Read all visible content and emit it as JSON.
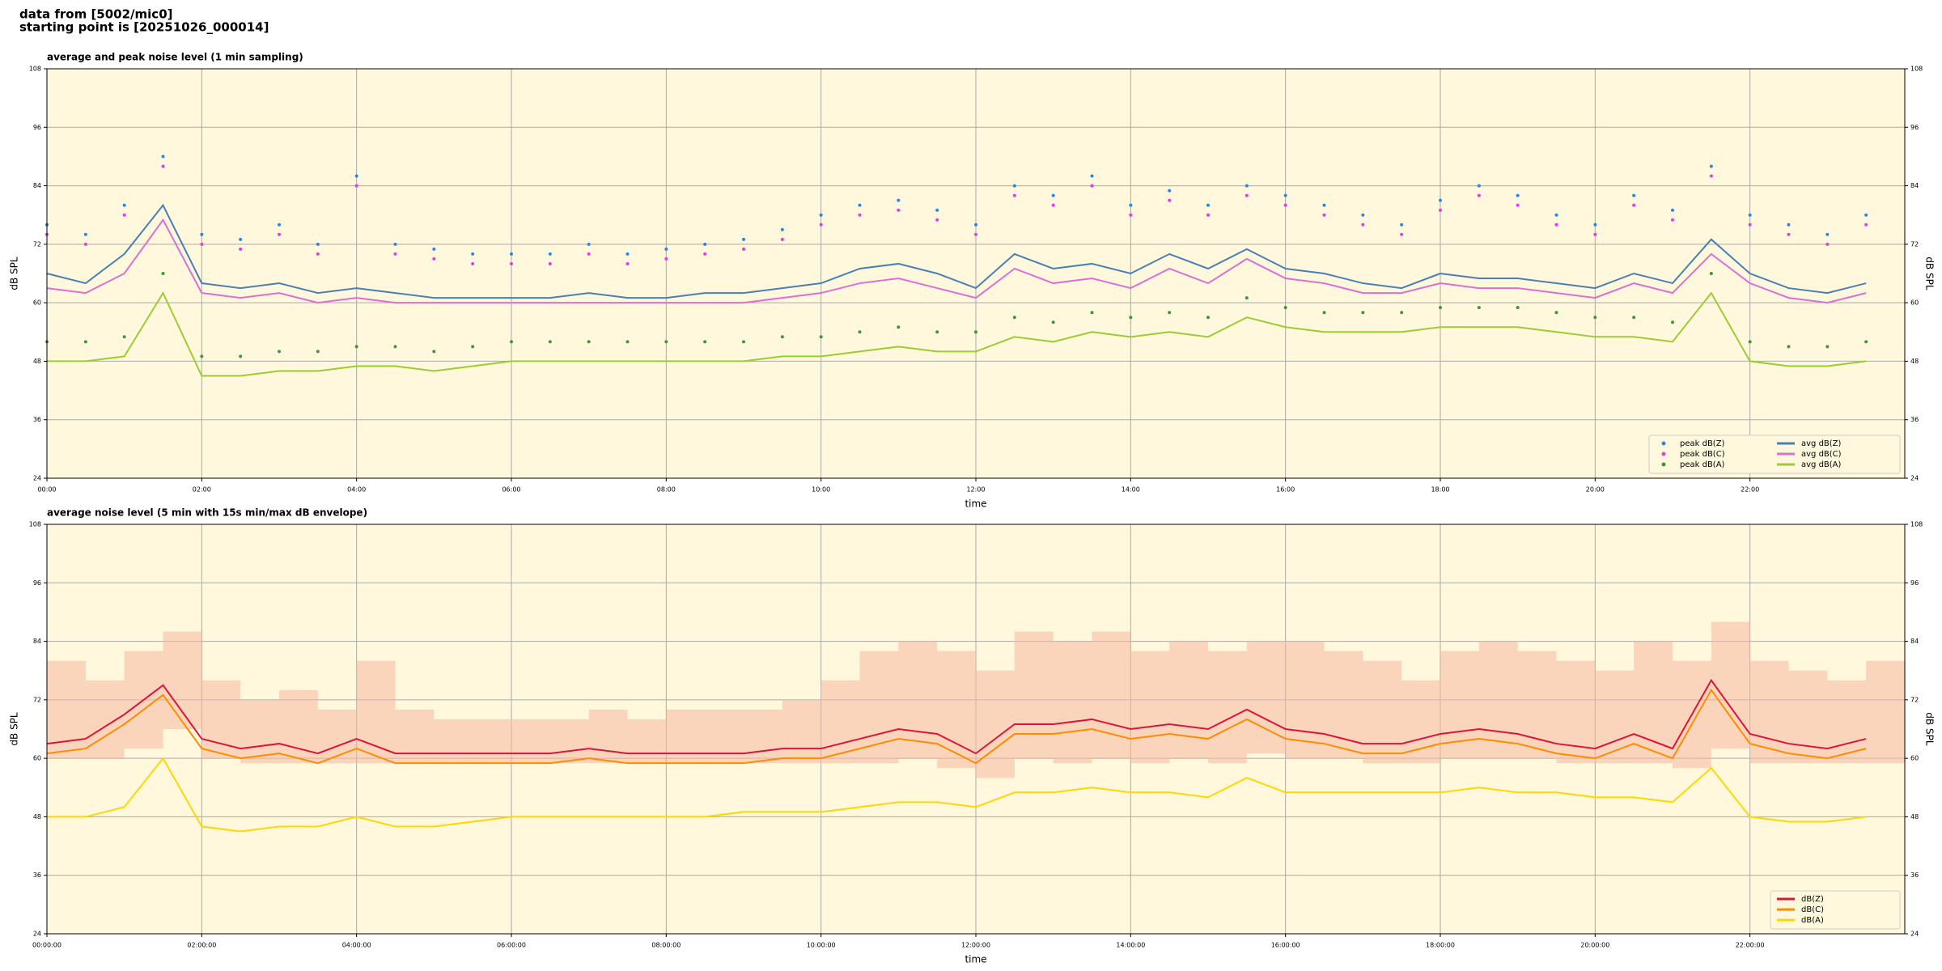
{
  "header": {
    "lines": [
      "data from [5002/mic0]",
      "starting point is [20251026_000014]"
    ]
  },
  "chart_data": [
    {
      "type": "line",
      "title": "average and peak noise level (1 min sampling)",
      "x_label": "time",
      "y_label": "dB SPL",
      "background": "#fff8dc",
      "grid": true,
      "legend": "lower right",
      "legend_columns": 2,
      "xlim": [
        0,
        24
      ],
      "ylim": [
        24,
        108
      ],
      "yticks": [
        24,
        36,
        48,
        60,
        72,
        84,
        96,
        108
      ],
      "xticks": [
        {
          "value": 0,
          "label": "00:00"
        },
        {
          "value": 2,
          "label": "02:00"
        },
        {
          "value": 4,
          "label": "04:00"
        },
        {
          "value": 6,
          "label": "06:00"
        },
        {
          "value": 8,
          "label": "08:00"
        },
        {
          "value": 10,
          "label": "10:00"
        },
        {
          "value": 12,
          "label": "12:00"
        },
        {
          "value": 14,
          "label": "14:00"
        },
        {
          "value": 16,
          "label": "16:00"
        },
        {
          "value": 18,
          "label": "18:00"
        },
        {
          "value": 20,
          "label": "20:00"
        },
        {
          "value": 22,
          "label": "22:00"
        }
      ],
      "x": [
        0,
        0.5,
        1,
        1.5,
        2,
        2.5,
        3,
        3.5,
        4,
        4.5,
        5,
        5.5,
        6,
        6.5,
        7,
        7.5,
        8,
        8.5,
        9,
        9.5,
        10,
        10.5,
        11,
        11.5,
        12,
        12.5,
        13,
        13.5,
        14,
        14.5,
        15,
        15.5,
        16,
        16.5,
        17,
        17.5,
        18,
        18.5,
        19,
        19.5,
        20,
        20.5,
        21,
        21.5,
        22,
        22.5,
        23,
        23.5
      ],
      "series": [
        {
          "name": "peak dB(Z)",
          "type": "scatter",
          "color": "#2e86de",
          "values": [
            76,
            74,
            80,
            90,
            74,
            73,
            76,
            72,
            86,
            72,
            71,
            70,
            70,
            70,
            72,
            70,
            71,
            72,
            73,
            75,
            78,
            80,
            81,
            79,
            76,
            84,
            82,
            86,
            80,
            83,
            80,
            84,
            82,
            80,
            78,
            76,
            81,
            84,
            82,
            78,
            76,
            82,
            79,
            88,
            78,
            76,
            74,
            78
          ]
        },
        {
          "name": "peak dB(C)",
          "type": "scatter",
          "color": "#e040e0",
          "values": [
            74,
            72,
            78,
            88,
            72,
            71,
            74,
            70,
            84,
            70,
            69,
            68,
            68,
            68,
            70,
            68,
            69,
            70,
            71,
            73,
            76,
            78,
            79,
            77,
            74,
            82,
            80,
            84,
            78,
            81,
            78,
            82,
            80,
            78,
            76,
            74,
            79,
            82,
            80,
            76,
            74,
            80,
            77,
            86,
            76,
            74,
            72,
            76
          ]
        },
        {
          "name": "peak dB(A)",
          "type": "scatter",
          "color": "#3a9a3a",
          "values": [
            52,
            52,
            53,
            66,
            49,
            49,
            50,
            50,
            51,
            51,
            50,
            51,
            52,
            52,
            52,
            52,
            52,
            52,
            52,
            53,
            53,
            54,
            55,
            54,
            54,
            57,
            56,
            58,
            57,
            58,
            57,
            61,
            59,
            58,
            58,
            58,
            59,
            59,
            59,
            58,
            57,
            57,
            56,
            66,
            52,
            51,
            51,
            52
          ]
        },
        {
          "name": "avg dB(Z)",
          "type": "line",
          "color": "#4a7fb5",
          "values": [
            66,
            64,
            70,
            80,
            64,
            63,
            64,
            62,
            63,
            62,
            61,
            61,
            61,
            61,
            62,
            61,
            61,
            62,
            62,
            63,
            64,
            67,
            68,
            66,
            63,
            70,
            67,
            68,
            66,
            70,
            67,
            71,
            67,
            66,
            64,
            63,
            66,
            65,
            65,
            64,
            63,
            66,
            64,
            73,
            66,
            63,
            62,
            64
          ]
        },
        {
          "name": "avg dB(C)",
          "type": "line",
          "color": "#da70d6",
          "values": [
            63,
            62,
            66,
            77,
            62,
            61,
            62,
            60,
            61,
            60,
            60,
            60,
            60,
            60,
            60,
            60,
            60,
            60,
            60,
            61,
            62,
            64,
            65,
            63,
            61,
            67,
            64,
            65,
            63,
            67,
            64,
            69,
            65,
            64,
            62,
            62,
            64,
            63,
            63,
            62,
            61,
            64,
            62,
            70,
            64,
            61,
            60,
            62
          ]
        },
        {
          "name": "avg dB(A)",
          "type": "line",
          "color": "#9acd32",
          "values": [
            48,
            48,
            49,
            62,
            45,
            45,
            46,
            46,
            47,
            47,
            46,
            47,
            48,
            48,
            48,
            48,
            48,
            48,
            48,
            49,
            49,
            50,
            51,
            50,
            50,
            53,
            52,
            54,
            53,
            54,
            53,
            57,
            55,
            54,
            54,
            54,
            55,
            55,
            55,
            54,
            53,
            53,
            52,
            62,
            48,
            47,
            47,
            48
          ]
        }
      ]
    },
    {
      "type": "line",
      "title": "average noise level (5 min with 15s min/max dB envelope)",
      "x_label": "time",
      "y_label": "dB SPL",
      "background": "#fff8dc",
      "grid": true,
      "legend": "lower right",
      "legend_columns": 1,
      "xlim": [
        0,
        24
      ],
      "ylim": [
        24,
        108
      ],
      "yticks": [
        24,
        36,
        48,
        60,
        72,
        84,
        96,
        108
      ],
      "xticks": [
        {
          "value": 0,
          "label": "00:00:00"
        },
        {
          "value": 2,
          "label": "02:00:00"
        },
        {
          "value": 4,
          "label": "04:00:00"
        },
        {
          "value": 6,
          "label": "06:00:00"
        },
        {
          "value": 8,
          "label": "08:00:00"
        },
        {
          "value": 10,
          "label": "10:00:00"
        },
        {
          "value": 12,
          "label": "12:00:00"
        },
        {
          "value": 14,
          "label": "14:00:00"
        },
        {
          "value": 16,
          "label": "16:00:00"
        },
        {
          "value": 18,
          "label": "18:00:00"
        },
        {
          "value": 20,
          "label": "20:00:00"
        },
        {
          "value": 22,
          "label": "22:00:00"
        }
      ],
      "x": [
        0,
        0.5,
        1,
        1.5,
        2,
        2.5,
        3,
        3.5,
        4,
        4.5,
        5,
        5.5,
        6,
        6.5,
        7,
        7.5,
        8,
        8.5,
        9,
        9.5,
        10,
        10.5,
        11,
        11.5,
        12,
        12.5,
        13,
        13.5,
        14,
        14.5,
        15,
        15.5,
        16,
        16.5,
        17,
        17.5,
        18,
        18.5,
        19,
        19.5,
        20,
        20.5,
        21,
        21.5,
        22,
        22.5,
        23,
        23.5
      ],
      "envelope": {
        "color": "#f5b8a0",
        "lower": [
          60,
          60,
          62,
          66,
          60,
          59,
          59,
          59,
          59,
          59,
          59,
          59,
          59,
          59,
          59,
          59,
          59,
          59,
          59,
          59,
          59,
          59,
          60,
          58,
          56,
          60,
          59,
          60,
          59,
          60,
          59,
          61,
          60,
          60,
          59,
          59,
          60,
          60,
          60,
          59,
          59,
          59,
          58,
          62,
          59,
          59,
          59,
          59
        ],
        "upper": [
          80,
          76,
          82,
          86,
          76,
          72,
          74,
          70,
          80,
          70,
          68,
          68,
          68,
          68,
          70,
          68,
          70,
          70,
          70,
          72,
          76,
          82,
          84,
          82,
          78,
          86,
          84,
          86,
          82,
          84,
          82,
          84,
          84,
          82,
          80,
          76,
          82,
          84,
          82,
          80,
          78,
          84,
          80,
          88,
          80,
          78,
          76,
          80
        ]
      },
      "series": [
        {
          "name": "dB(Z)",
          "type": "line",
          "color": "#dc143c",
          "values": [
            63,
            64,
            69,
            75,
            64,
            62,
            63,
            61,
            64,
            61,
            61,
            61,
            61,
            61,
            62,
            61,
            61,
            61,
            61,
            62,
            62,
            64,
            66,
            65,
            61,
            67,
            67,
            68,
            66,
            67,
            66,
            70,
            66,
            65,
            63,
            63,
            65,
            66,
            65,
            63,
            62,
            65,
            62,
            76,
            65,
            63,
            62,
            64
          ]
        },
        {
          "name": "dB(C)",
          "type": "line",
          "color": "#ff8c00",
          "values": [
            61,
            62,
            67,
            73,
            62,
            60,
            61,
            59,
            62,
            59,
            59,
            59,
            59,
            59,
            60,
            59,
            59,
            59,
            59,
            60,
            60,
            62,
            64,
            63,
            59,
            65,
            65,
            66,
            64,
            65,
            64,
            68,
            64,
            63,
            61,
            61,
            63,
            64,
            63,
            61,
            60,
            63,
            60,
            74,
            63,
            61,
            60,
            62
          ]
        },
        {
          "name": "dB(A)",
          "type": "line",
          "color": "#ffd700",
          "values": [
            48,
            48,
            50,
            60,
            46,
            45,
            46,
            46,
            48,
            46,
            46,
            47,
            48,
            48,
            48,
            48,
            48,
            48,
            49,
            49,
            49,
            50,
            51,
            51,
            50,
            53,
            53,
            54,
            53,
            53,
            52,
            56,
            53,
            53,
            53,
            53,
            53,
            54,
            53,
            53,
            52,
            52,
            51,
            58,
            48,
            47,
            47,
            48
          ]
        }
      ]
    }
  ]
}
